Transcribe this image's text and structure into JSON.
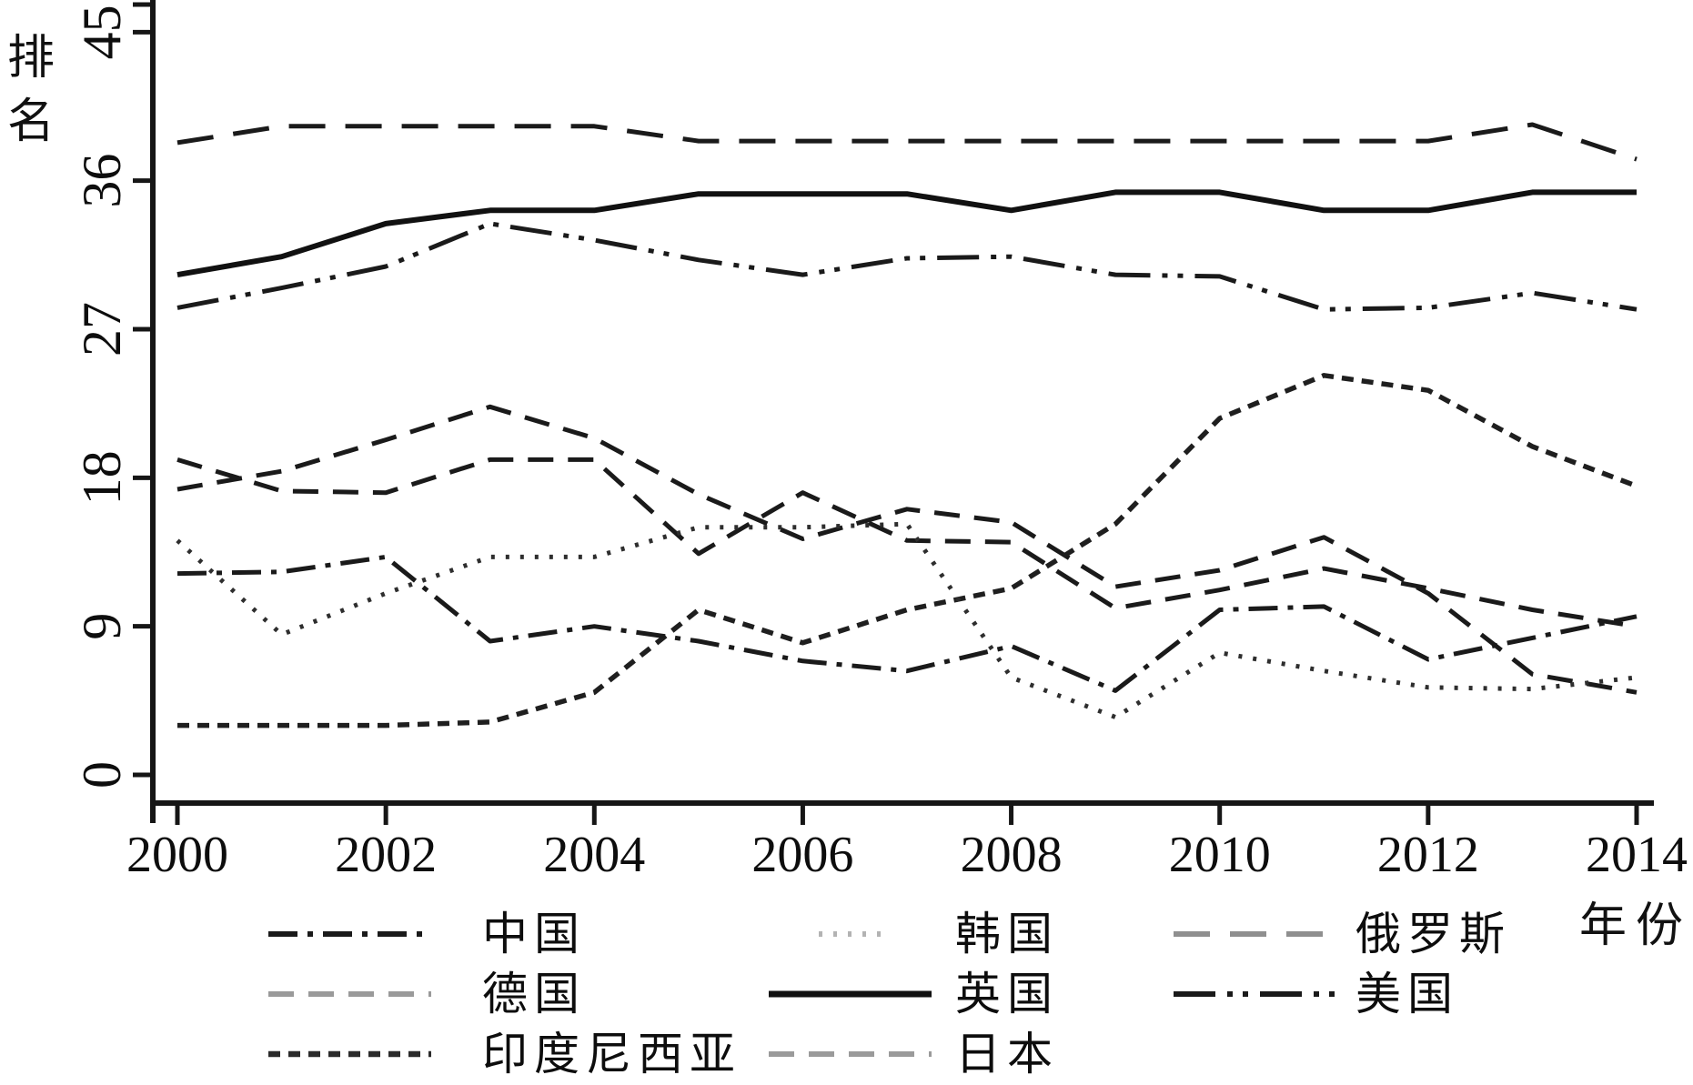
{
  "axis": {
    "y_label": "排名",
    "x_label": "年份",
    "y_ticks": [
      0,
      9,
      18,
      27,
      36,
      45
    ],
    "x_ticks": [
      2000,
      2002,
      2004,
      2006,
      2008,
      2010,
      2012,
      2014
    ]
  },
  "colors": {
    "axis": "#161616",
    "black_line": "#1a1a1a",
    "gray_legend_dash": "#9a9a9a",
    "gray_legend_dot": "#b3b3b3"
  },
  "chart_data": {
    "type": "line",
    "title": "",
    "xlabel": "年份",
    "ylabel": "排名",
    "ylim": [
      0,
      45
    ],
    "xlim": [
      2000,
      2014
    ],
    "grid": false,
    "legend_position": "bottom",
    "x": [
      2000,
      2001,
      2002,
      2003,
      2004,
      2005,
      2006,
      2007,
      2008,
      2009,
      2010,
      2011,
      2012,
      2013,
      2014
    ],
    "series": [
      {
        "key": "russia",
        "name": "俄罗斯",
        "color": "#1a1a1a",
        "legend_color": "#8f8f8f",
        "style": "longdash",
        "values": [
          38.3,
          39.3,
          39.3,
          39.3,
          39.3,
          38.4,
          38.4,
          38.4,
          38.4,
          38.4,
          38.4,
          38.4,
          38.4,
          39.4,
          37.3
        ]
      },
      {
        "key": "uk",
        "name": "英国",
        "color": "#111111",
        "legend_color": "#111111",
        "style": "solid",
        "values": [
          30.3,
          31.4,
          33.4,
          34.2,
          34.2,
          35.2,
          35.2,
          35.2,
          34.2,
          35.3,
          35.3,
          34.2,
          34.2,
          35.3,
          35.3
        ]
      },
      {
        "key": "usa",
        "name": "美国",
        "color": "#1a1a1a",
        "legend_color": "#1a1a1a",
        "style": "dash_dot_dot",
        "values": [
          28.3,
          29.5,
          30.8,
          33.4,
          32.4,
          31.2,
          30.3,
          31.3,
          31.4,
          30.3,
          30.2,
          28.2,
          28.3,
          29.2,
          28.2
        ]
      },
      {
        "key": "germany",
        "name": "德国",
        "color": "#1a1a1a",
        "legend_color": "#9a9a9a",
        "style": "dash",
        "values": [
          17.3,
          18.4,
          20.3,
          22.3,
          20.4,
          17.0,
          14.3,
          16.1,
          15.3,
          11.4,
          12.4,
          14.4,
          11.0,
          6.1,
          5.0
        ]
      },
      {
        "key": "japan",
        "name": "日本",
        "color": "#1a1a1a",
        "legend_color": "#9a9a9a",
        "style": "dash",
        "values": [
          19.1,
          17.2,
          17.1,
          19.1,
          19.1,
          13.4,
          17.1,
          14.2,
          14.1,
          10.1,
          11.2,
          12.5,
          11.3,
          10.0,
          9.0
        ]
      },
      {
        "key": "indonesia",
        "name": "印度尼西亚",
        "color": "#1f1f1f",
        "legend_color": "#2a2a2a",
        "style": "shortdash",
        "values": [
          3.0,
          3.0,
          3.0,
          3.2,
          5.0,
          10.0,
          8.0,
          10.0,
          11.3,
          15.2,
          21.6,
          24.2,
          23.3,
          19.9,
          17.5
        ]
      },
      {
        "key": "china",
        "name": "中国",
        "color": "#1a1a1a",
        "legend_color": "#1a1a1a",
        "style": "longdash_dot",
        "values": [
          12.2,
          12.3,
          13.2,
          8.1,
          9.0,
          8.1,
          6.9,
          6.3,
          7.8,
          5.1,
          10.0,
          10.2,
          7.0,
          8.3,
          9.6
        ]
      },
      {
        "key": "korea",
        "name": "韩国",
        "color": "#2e2e2e",
        "legend_color": "#b3b3b3",
        "style": "dot",
        "values": [
          14.2,
          8.5,
          11.0,
          13.2,
          13.2,
          15.0,
          15.0,
          15.2,
          5.9,
          3.5,
          7.4,
          6.3,
          5.3,
          5.2,
          5.9
        ]
      }
    ]
  },
  "legend": {
    "rows": [
      [
        {
          "series": "china"
        },
        {
          "series": "korea"
        },
        {
          "series": "russia"
        }
      ],
      [
        {
          "series": "germany"
        },
        {
          "series": "uk"
        },
        {
          "series": "usa"
        }
      ],
      [
        {
          "series": "indonesia"
        },
        {
          "series": "japan"
        }
      ]
    ]
  }
}
